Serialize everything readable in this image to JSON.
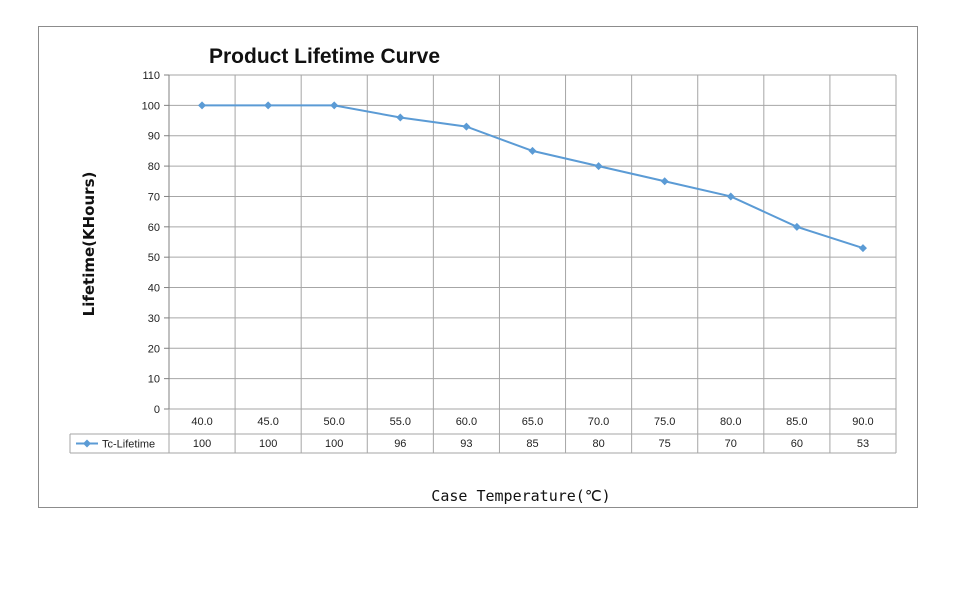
{
  "chart_data": {
    "type": "line",
    "title": "Product Lifetime Curve",
    "ylabel": "Lifetime(KHours)",
    "xlabel": "Case Temperature(℃)",
    "ylim": [
      0,
      110
    ],
    "yticks": [
      0,
      10,
      20,
      30,
      40,
      50,
      60,
      70,
      80,
      90,
      100,
      110
    ],
    "grid": true,
    "legend_position": "bottom-left (data table)",
    "categories": [
      "40.0",
      "45.0",
      "50.0",
      "55.0",
      "60.0",
      "65.0",
      "70.0",
      "75.0",
      "80.0",
      "85.0",
      "90.0"
    ],
    "series": [
      {
        "name": "Tc-Lifetime",
        "color": "#5b9bd5",
        "marker": "diamond",
        "values": [
          100,
          100,
          100,
          96,
          93,
          85,
          80,
          75,
          70,
          60,
          53
        ]
      }
    ]
  }
}
